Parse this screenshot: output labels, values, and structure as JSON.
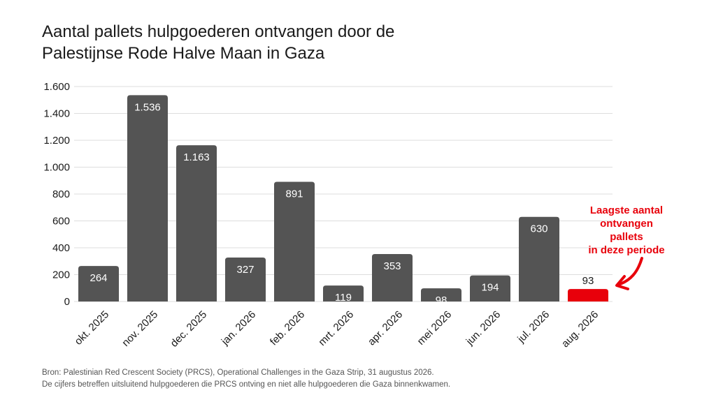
{
  "title_lines": [
    "Aantal pallets hulpgoederen ontvangen door de",
    "Palestijnse Rode Halve Maan in Gaza"
  ],
  "footer_lines": [
    "Bron: Palestinian Red Crescent Society (PRCS), Operational Challenges in the Gaza Strip, 31 augustus 2026.",
    "De cijfers betreffen uitsluitend hulpgoederen die PRCS ontving en niet alle hulpgoederen die Gaza binnenkwamen."
  ],
  "annotation_lines": [
    "Laagste aantal",
    "ontvangen pallets",
    "in deze periode"
  ],
  "colors": {
    "bar": "#545454",
    "highlight": "#e8000b",
    "grid": "#dddddd",
    "text": "#1a1a1a"
  },
  "chart_data": {
    "type": "bar",
    "categories": [
      "okt. 2025",
      "nov. 2025",
      "dec. 2025",
      "jan. 2026",
      "feb. 2026",
      "mrt. 2026",
      "apr. 2026",
      "mei 2026",
      "jun. 2026",
      "jul. 2026",
      "aug. 2026"
    ],
    "values": [
      264,
      1536,
      1163,
      327,
      891,
      119,
      353,
      98,
      194,
      630,
      93
    ],
    "value_labels": [
      "264",
      "1.536",
      "1.163",
      "327",
      "891",
      "119",
      "353",
      "98",
      "194",
      "630",
      "93"
    ],
    "highlight_index": 10,
    "ylim": [
      0,
      1600
    ],
    "yticks": [
      0,
      200,
      400,
      600,
      800,
      1000,
      1200,
      1400,
      1600
    ],
    "ytick_labels": [
      "0",
      "200",
      "400",
      "600",
      "800",
      "1.000",
      "1.200",
      "1.400",
      "1.600"
    ],
    "grid": true,
    "legend": "none"
  }
}
